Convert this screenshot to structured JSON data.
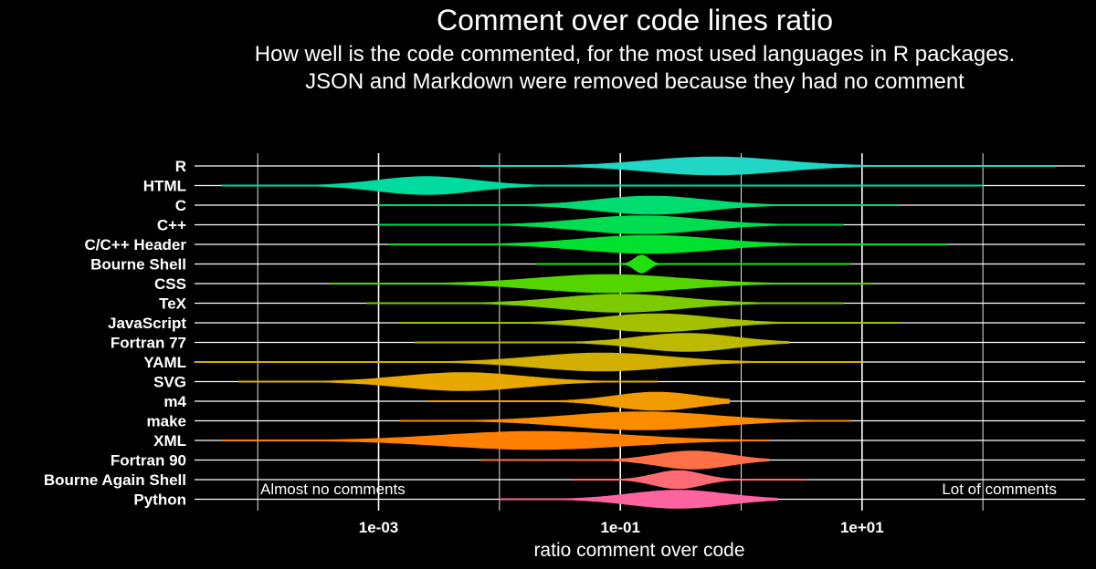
{
  "chart_data": {
    "type": "violin",
    "title": "Comment over code lines ratio",
    "subtitle_line1": "How well is the code commented, for the most used languages in R packages.",
    "subtitle_line2": "JSON and Markdown were removed because they had no comment",
    "xlabel": "ratio comment over code",
    "ylabel": "",
    "x_scale": "log10",
    "xlim": [
      3e-05,
      700
    ],
    "x_ticks": [
      {
        "value": 0.001,
        "label": "1e-03"
      },
      {
        "value": 0.1,
        "label": "1e-01"
      },
      {
        "value": 10,
        "label": "1e+01"
      }
    ],
    "annotations": {
      "left": "Almost no comments",
      "right": "Lot of comments"
    },
    "series": [
      {
        "name": "R",
        "color": "#1fd7c4",
        "min": 0.007,
        "max": 400,
        "mode": 0.6,
        "spread": 0.55,
        "peak": 1.0
      },
      {
        "name": "HTML",
        "color": "#00dba0",
        "min": 5e-05,
        "max": 100,
        "mode": 0.0025,
        "spread": 0.4,
        "peak": 1.0
      },
      {
        "name": "C",
        "color": "#00dd70",
        "min": 0.001,
        "max": 20,
        "mode": 0.18,
        "spread": 0.45,
        "peak": 1.0
      },
      {
        "name": "C++",
        "color": "#00dd50",
        "min": 0.001,
        "max": 7,
        "mode": 0.15,
        "spread": 0.5,
        "peak": 1.0
      },
      {
        "name": "C/C++ Header",
        "color": "#00e130",
        "min": 0.0012,
        "max": 50,
        "mode": 0.17,
        "spread": 0.55,
        "peak": 1.0
      },
      {
        "name": "Bourne Shell",
        "color": "#22e010",
        "min": 0.02,
        "max": 8,
        "mode": 0.15,
        "spread": 0.06,
        "peak": 1.0
      },
      {
        "name": "CSS",
        "color": "#55d500",
        "min": 0.0004,
        "max": 12,
        "mode": 0.08,
        "spread": 0.6,
        "peak": 1.0
      },
      {
        "name": "TeX",
        "color": "#7ccb00",
        "min": 0.0008,
        "max": 7,
        "mode": 0.1,
        "spread": 0.5,
        "peak": 1.0
      },
      {
        "name": "JavaScript",
        "color": "#a5c000",
        "min": 0.0015,
        "max": 20,
        "mode": 0.2,
        "spread": 0.45,
        "peak": 1.0
      },
      {
        "name": "Fortran 77",
        "color": "#bdb800",
        "min": 0.002,
        "max": 2.5,
        "mode": 0.35,
        "spread": 0.4,
        "peak": 1.0
      },
      {
        "name": "YAML",
        "color": "#d2af00",
        "min": 3e-05,
        "max": 10,
        "mode": 0.07,
        "spread": 0.55,
        "peak": 1.0
      },
      {
        "name": "SVG",
        "color": "#e8a800",
        "min": 7e-05,
        "max": 0.2,
        "mode": 0.005,
        "spread": 0.5,
        "peak": 1.0
      },
      {
        "name": "m4",
        "color": "#f09c00",
        "min": 0.0025,
        "max": 0.8,
        "mode": 0.2,
        "spread": 0.35,
        "peak": 1.0
      },
      {
        "name": "make",
        "color": "#fb8c00",
        "min": 0.0015,
        "max": 8,
        "mode": 0.15,
        "spread": 0.6,
        "peak": 1.0
      },
      {
        "name": "XML",
        "color": "#ff8000",
        "min": 5e-05,
        "max": 1.7,
        "mode": 0.02,
        "spread": 0.75,
        "peak": 1.0
      },
      {
        "name": "Fortran 90",
        "color": "#ff7046",
        "min": 0.007,
        "max": 1.7,
        "mode": 0.4,
        "spread": 0.3,
        "peak": 1.0
      },
      {
        "name": "Bourne Again Shell",
        "color": "#ff6a74",
        "min": 0.04,
        "max": 3.5,
        "mode": 0.3,
        "spread": 0.2,
        "peak": 1.0
      },
      {
        "name": "Python",
        "color": "#ff63a0",
        "min": 0.01,
        "max": 2,
        "mode": 0.3,
        "spread": 0.4,
        "peak": 1.0
      }
    ]
  }
}
